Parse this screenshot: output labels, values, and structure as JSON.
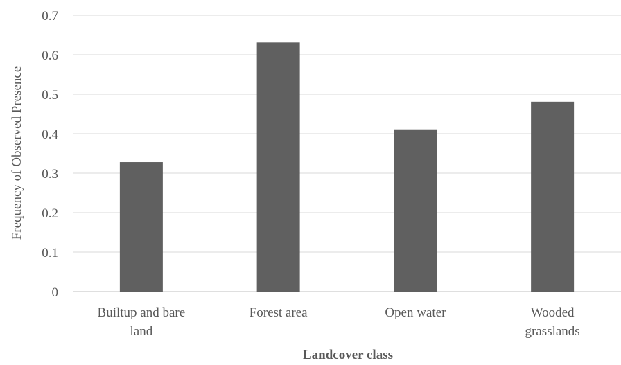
{
  "chart_data": {
    "type": "bar",
    "title": "",
    "xlabel": "Landcover class",
    "ylabel": "Frequency of Observed Presence",
    "categories": [
      [
        "Builtup and bare",
        "land"
      ],
      [
        "Forest area"
      ],
      [
        "Open water"
      ],
      [
        "Wooded",
        "grasslands"
      ]
    ],
    "values": [
      0.328,
      0.631,
      0.411,
      0.481
    ],
    "ylim": [
      0,
      0.7
    ],
    "yticks": [
      "0",
      "0.1",
      "0.2",
      "0.3",
      "0.4",
      "0.5",
      "0.6",
      "0.7"
    ],
    "grid": true,
    "legend": "none",
    "colors": {
      "bar": "#606060",
      "grid": "#d9d9d9",
      "axis": "#bfbfbf",
      "text": "#595959"
    }
  }
}
